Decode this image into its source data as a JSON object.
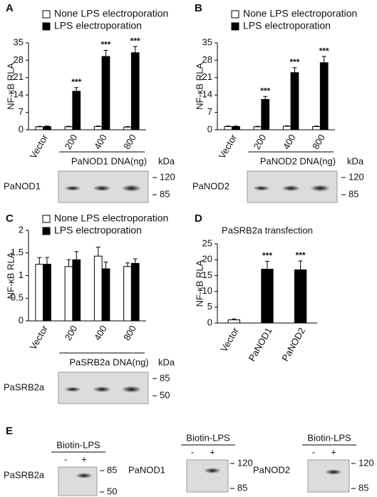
{
  "chart_data": [
    {
      "type": "bar",
      "panel": "A",
      "ylabel": "NF-κB RLA",
      "categories": [
        "Vector",
        "200",
        "400",
        "800"
      ],
      "group_label": "PaNOD1 DNA(ng)",
      "series": [
        {
          "name": "None LPS electroporation",
          "color": "#ffffff",
          "values": [
            1.2,
            1.2,
            1.3,
            1.1
          ],
          "errors": [
            0.2,
            0.2,
            0.2,
            0.2
          ]
        },
        {
          "name": "LPS electroporation",
          "color": "#000000",
          "values": [
            1.3,
            15.5,
            29.5,
            31
          ],
          "errors": [
            0.2,
            1.5,
            2.5,
            2.5
          ],
          "significance": [
            null,
            "***",
            "***",
            "***"
          ]
        }
      ],
      "ylim": [
        0,
        35
      ],
      "yticks": [
        0,
        7,
        14,
        21,
        28,
        35
      ],
      "blot": {
        "label": "PaNOD1",
        "unit": "kDa",
        "markers": [
          120,
          85
        ]
      }
    },
    {
      "type": "bar",
      "panel": "B",
      "ylabel": "NF-κB RLA",
      "categories": [
        "Vector",
        "200",
        "400",
        "800"
      ],
      "group_label": "PaNOD2 DNA(ng)",
      "series": [
        {
          "name": "None LPS electroporation",
          "color": "#ffffff",
          "values": [
            1.3,
            1.2,
            1.4,
            1.3
          ],
          "errors": [
            0.2,
            0.2,
            0.2,
            0.2
          ]
        },
        {
          "name": "LPS electroporation",
          "color": "#000000",
          "values": [
            1.3,
            12.2,
            23,
            27
          ],
          "errors": [
            0.2,
            1.2,
            2,
            2.5
          ],
          "significance": [
            null,
            "***",
            "***",
            "***"
          ]
        }
      ],
      "ylim": [
        0,
        35
      ],
      "yticks": [
        0,
        7,
        14,
        21,
        28,
        35
      ],
      "blot": {
        "label": "PaNOD2",
        "unit": "kDa",
        "markers": [
          120,
          85
        ]
      }
    },
    {
      "type": "bar",
      "panel": "C",
      "ylabel": "NF-κB RLA",
      "categories": [
        "Vector",
        "200",
        "400",
        "800"
      ],
      "group_label": "PaSRB2a  DNA(ng)",
      "series": [
        {
          "name": "None LPS electroporation",
          "color": "#ffffff",
          "values": [
            1.25,
            1.2,
            1.43,
            1.2
          ],
          "errors": [
            0.15,
            0.15,
            0.2,
            0.08
          ]
        },
        {
          "name": "LPS electroporation",
          "color": "#000000",
          "values": [
            1.25,
            1.35,
            1.15,
            1.27
          ],
          "errors": [
            0.15,
            0.18,
            0.15,
            0.1
          ]
        }
      ],
      "ylim": [
        0,
        2
      ],
      "yticks": [
        0,
        0.5,
        1,
        1.5,
        2
      ],
      "blot": {
        "label": "PaSRB2a",
        "unit": "kDa",
        "markers": [
          85,
          50
        ]
      }
    },
    {
      "type": "bar",
      "panel": "D",
      "title": "PaSRB2a transfection",
      "ylabel": "NF-κB RLA",
      "categories": [
        "Vector",
        "PaNOD1",
        "PaNOD2"
      ],
      "values": [
        1,
        17,
        16.8
      ],
      "errors": [
        0.3,
        2.5,
        2.8
      ],
      "colors": [
        "#ffffff",
        "#000000",
        "#000000"
      ],
      "significance": [
        null,
        "***",
        "***"
      ],
      "ylim": [
        0,
        25
      ],
      "yticks": [
        0,
        5,
        10,
        15,
        20,
        25
      ]
    }
  ],
  "panel_e": {
    "panel": "E",
    "blots": [
      {
        "header": "Biotin-LPS",
        "lanes": [
          "-",
          "+"
        ],
        "label": "PaSRB2a",
        "markers": [
          85,
          50
        ]
      },
      {
        "header": "Biotin-LPS",
        "lanes": [
          "-",
          "+"
        ],
        "label": "PaNOD1",
        "markers": [
          120,
          85
        ]
      },
      {
        "header": "Biotin-LPS",
        "lanes": [
          "-",
          "+"
        ],
        "label": "PaNOD2",
        "markers": [
          120,
          85
        ]
      }
    ]
  }
}
